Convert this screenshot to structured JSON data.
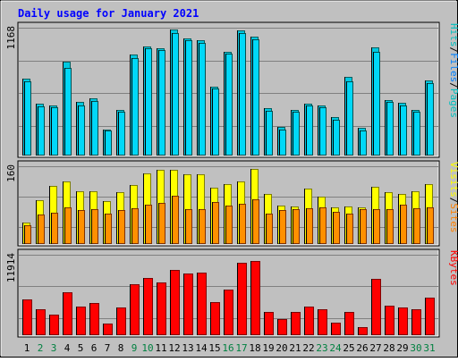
{
  "title": "Daily usage for January 2021",
  "colors": {
    "background": "#c0c0c0",
    "panel": "#c0c0c0",
    "grid": "#808080",
    "title": "#0000ff",
    "hits": "#00c0c0",
    "hits_fill": "#00c8e0",
    "hits_shade": "#006060",
    "files": "#0080ff",
    "files_fill": "#00d8f8",
    "files_shade": "#005050",
    "pages": "#00c0c0",
    "visits": "#ffff00",
    "visits_fill": "#ffff00",
    "visits_shade": "#808000",
    "sites": "#ff8000",
    "sites_fill": "#ff9000",
    "sites_shade": "#803000",
    "kbytes": "#ff0000",
    "kbytes_fill": "#ff0000",
    "kbytes_shade": "#800000",
    "weekday_label": "#000000",
    "weekend_label": "#008040"
  },
  "chart_data": [
    {
      "type": "bar",
      "panel": "hits-files-pages",
      "ymax_label": "1168",
      "ylim": [
        0,
        1168
      ],
      "legend": [
        {
          "name": "Pages",
          "color": "#00c0c0"
        },
        {
          "name": "/",
          "color": "#000000"
        },
        {
          "name": "Files",
          "color": "#0080ff"
        },
        {
          "name": "/",
          "color": "#000000"
        },
        {
          "name": "Hits",
          "color": "#00c0c0"
        }
      ],
      "categories": [
        "1",
        "2",
        "3",
        "4",
        "5",
        "6",
        "7",
        "8",
        "9",
        "10",
        "11",
        "12",
        "13",
        "14",
        "15",
        "16",
        "17",
        "18",
        "19",
        "20",
        "21",
        "22",
        "23",
        "24",
        "25",
        "26",
        "27",
        "28",
        "29",
        "30",
        "31"
      ],
      "series": [
        {
          "name": "Hits",
          "values": [
            700,
            470,
            460,
            860,
            490,
            520,
            240,
            420,
            920,
            1000,
            980,
            1150,
            1070,
            1050,
            630,
            950,
            1140,
            1090,
            430,
            260,
            420,
            470,
            460,
            350,
            720,
            250,
            990,
            510,
            480,
            420,
            690
          ]
        },
        {
          "name": "Files",
          "values": [
            680,
            450,
            440,
            800,
            460,
            500,
            230,
            400,
            890,
            980,
            960,
            1120,
            1050,
            1030,
            610,
            930,
            1120,
            1060,
            410,
            240,
            400,
            460,
            440,
            330,
            680,
            230,
            950,
            490,
            460,
            400,
            660
          ]
        }
      ]
    },
    {
      "type": "bar",
      "panel": "visits-sites",
      "ymax_label": "160",
      "ylim": [
        0,
        160
      ],
      "legend": [
        {
          "name": "Sites",
          "color": "#ff8000"
        },
        {
          "name": "/",
          "color": "#000000"
        },
        {
          "name": "Visits",
          "color": "#ffff00"
        }
      ],
      "categories": [
        "1",
        "2",
        "3",
        "4",
        "5",
        "6",
        "7",
        "8",
        "9",
        "10",
        "11",
        "12",
        "13",
        "14",
        "15",
        "16",
        "17",
        "18",
        "19",
        "20",
        "21",
        "22",
        "23",
        "24",
        "25",
        "26",
        "27",
        "28",
        "29",
        "30",
        "31"
      ],
      "series": [
        {
          "name": "Visits",
          "values": [
            45,
            90,
            120,
            128,
            108,
            108,
            88,
            106,
            121,
            145,
            152,
            153,
            144,
            144,
            115,
            124,
            128,
            155,
            103,
            79,
            78,
            114,
            98,
            76,
            77,
            75,
            117,
            106,
            103,
            108,
            124
          ]
        },
        {
          "name": "Sites",
          "values": [
            38,
            61,
            65,
            75,
            70,
            72,
            63,
            69,
            74,
            81,
            85,
            99,
            71,
            71,
            86,
            79,
            82,
            92,
            63,
            69,
            71,
            73,
            75,
            67,
            63,
            72,
            71,
            72,
            80,
            73,
            76
          ]
        }
      ]
    },
    {
      "type": "bar",
      "panel": "kbytes",
      "ymax_label": "11914",
      "ylim": [
        0,
        11914
      ],
      "legend": [
        {
          "name": "KBytes",
          "color": "#ff0000"
        }
      ],
      "categories": [
        "1",
        "2",
        "3",
        "4",
        "5",
        "6",
        "7",
        "8",
        "9",
        "10",
        "11",
        "12",
        "13",
        "14",
        "15",
        "16",
        "17",
        "18",
        "19",
        "20",
        "21",
        "22",
        "23",
        "24",
        "25",
        "26",
        "27",
        "28",
        "29",
        "30",
        "31"
      ],
      "series": [
        {
          "name": "KBytes",
          "values": [
            5300,
            3800,
            3100,
            6300,
            4200,
            4800,
            1700,
            4100,
            7500,
            8500,
            7800,
            9600,
            9100,
            9300,
            4900,
            6800,
            10700,
            11000,
            3500,
            2400,
            3500,
            4300,
            3800,
            1900,
            3500,
            1200,
            8400,
            4400,
            4100,
            3900,
            5600
          ]
        }
      ]
    }
  ]
}
